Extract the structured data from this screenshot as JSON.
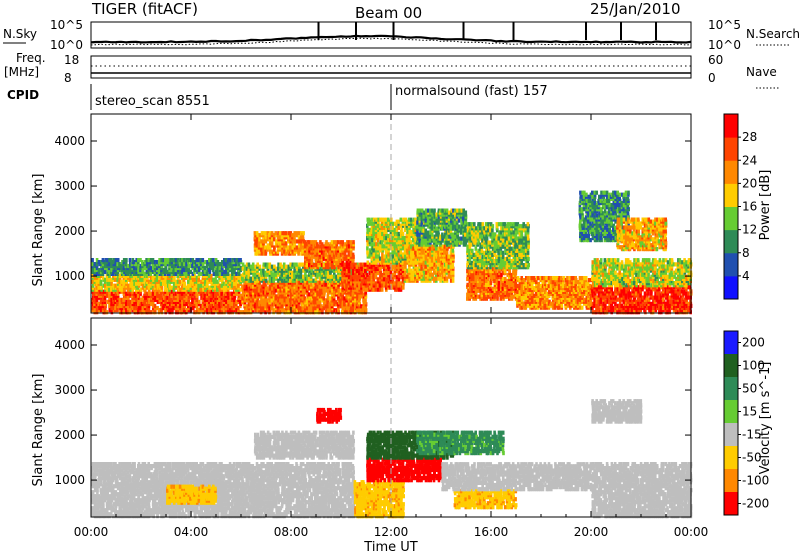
{
  "header": {
    "radar": "TIGER (fitACF)",
    "beam": "Beam 00",
    "date": "25/Jan/2010"
  },
  "sky_panel": {
    "left_label": "N.Sky",
    "right_label": "N.Search",
    "left_ticks": [
      "10^5",
      "10^0"
    ],
    "right_ticks": [
      "10^5",
      "10^0"
    ]
  },
  "freq_panel": {
    "left_label_line1": "Freq.",
    "left_label_line2": "[MHz]",
    "right_label": "Nave",
    "left_ticks": [
      "18",
      "8"
    ],
    "right_ticks": [
      "60",
      "0"
    ]
  },
  "cpid": {
    "label": "CPID",
    "segments": [
      {
        "name": "stereo_scan 8551",
        "start_hour": 0.0
      },
      {
        "name": "normalsound (fast) 157",
        "start_hour": 12.0
      }
    ]
  },
  "x_axis": {
    "label": "Time UT",
    "ticks": [
      "00:00",
      "04:00",
      "08:00",
      "12:00",
      "16:00",
      "20:00",
      "00:00"
    ],
    "tick_hours": [
      0,
      4,
      8,
      12,
      16,
      20,
      24
    ],
    "range_hours": [
      0,
      24
    ]
  },
  "chart_data": [
    {
      "type": "heatmap",
      "name": "power",
      "xlabel": "Time UT",
      "ylabel": "Slant Range [km]",
      "yticks": [
        "1000",
        "2000",
        "3000",
        "4000"
      ],
      "ytick_values": [
        1000,
        2000,
        3000,
        4000
      ],
      "ylim": [
        180,
        4600
      ],
      "xlim": [
        0,
        24
      ],
      "colorbar": {
        "label": "Power [dB]",
        "ticks": [
          "4",
          "8",
          "12",
          "16",
          "20",
          "24",
          "28"
        ],
        "levels": [
          0,
          4,
          8,
          12,
          16,
          20,
          24,
          28,
          32
        ],
        "colors": [
          "#1010ff",
          "#2050b0",
          "#2e8b57",
          "#66cc33",
          "#ffcc00",
          "#ff8800",
          "#ff4400",
          "#ff0000"
        ]
      },
      "regions": [
        {
          "t0": 0.0,
          "t1": 6.0,
          "r0": 200,
          "r1": 700,
          "v": 26
        },
        {
          "t0": 0.0,
          "t1": 6.0,
          "r0": 700,
          "r1": 1050,
          "v": 18
        },
        {
          "t0": 0.0,
          "t1": 6.0,
          "r0": 1050,
          "r1": 1400,
          "v": 10
        },
        {
          "t0": 6.0,
          "t1": 11.0,
          "r0": 200,
          "r1": 900,
          "v": 24
        },
        {
          "t0": 6.0,
          "t1": 11.0,
          "r0": 900,
          "r1": 1300,
          "v": 14
        },
        {
          "t0": 6.5,
          "t1": 8.5,
          "r0": 1500,
          "r1": 2000,
          "v": 22
        },
        {
          "t0": 8.5,
          "t1": 10.5,
          "r0": 1200,
          "r1": 1800,
          "v": 24
        },
        {
          "t0": 10.0,
          "t1": 12.5,
          "r0": 700,
          "r1": 1300,
          "v": 26
        },
        {
          "t0": 11.0,
          "t1": 13.0,
          "r0": 1300,
          "r1": 2300,
          "v": 16
        },
        {
          "t0": 12.5,
          "t1": 14.5,
          "r0": 900,
          "r1": 1700,
          "v": 20
        },
        {
          "t0": 13.0,
          "t1": 15.0,
          "r0": 1700,
          "r1": 2500,
          "v": 12
        },
        {
          "t0": 15.0,
          "t1": 17.0,
          "r0": 500,
          "r1": 1200,
          "v": 24
        },
        {
          "t0": 15.0,
          "t1": 17.5,
          "r0": 1200,
          "r1": 2200,
          "v": 14
        },
        {
          "t0": 17.0,
          "t1": 20.0,
          "r0": 300,
          "r1": 1000,
          "v": 22
        },
        {
          "t0": 19.5,
          "t1": 21.5,
          "r0": 1800,
          "r1": 2900,
          "v": 10
        },
        {
          "t0": 20.0,
          "t1": 24.0,
          "r0": 200,
          "r1": 800,
          "v": 28
        },
        {
          "t0": 20.0,
          "t1": 24.0,
          "r0": 800,
          "r1": 1400,
          "v": 16
        },
        {
          "t0": 21.0,
          "t1": 23.0,
          "r0": 1600,
          "r1": 2300,
          "v": 20
        }
      ]
    },
    {
      "type": "heatmap",
      "name": "velocity",
      "xlabel": "Time UT",
      "ylabel": "Slant Range [km]",
      "yticks": [
        "1000",
        "2000",
        "3000",
        "4000"
      ],
      "ytick_values": [
        1000,
        2000,
        3000,
        4000
      ],
      "ylim": [
        180,
        4600
      ],
      "xlim": [
        0,
        24
      ],
      "colorbar": {
        "label": "Velocity [m s^-1]",
        "ticks": [
          "200",
          "100",
          "50",
          "15",
          "-15",
          "-50",
          "-100",
          "-200"
        ],
        "colors": [
          "#1a1aff",
          "#206020",
          "#2e8b57",
          "#66cc33",
          "#bebebe",
          "#ffcc00",
          "#ff8800",
          "#ff0000"
        ]
      },
      "regions": [
        {
          "t0": 0.0,
          "t1": 10.5,
          "r0": 200,
          "r1": 1400,
          "v": 0
        },
        {
          "t0": 6.5,
          "t1": 10.5,
          "r0": 1500,
          "r1": 2100,
          "v": 0
        },
        {
          "t0": 3.0,
          "t1": 5.0,
          "r0": 500,
          "r1": 900,
          "v": -40
        },
        {
          "t0": 10.5,
          "t1": 12.5,
          "r0": 200,
          "r1": 1000,
          "v": -40
        },
        {
          "t0": 11.0,
          "t1": 14.0,
          "r0": 1000,
          "r1": 1500,
          "v": -200
        },
        {
          "t0": 11.0,
          "t1": 14.5,
          "r0": 1500,
          "r1": 2100,
          "v": 150
        },
        {
          "t0": 13.0,
          "t1": 16.5,
          "r0": 1600,
          "r1": 2100,
          "v": 60
        },
        {
          "t0": 14.5,
          "t1": 17.0,
          "r0": 400,
          "r1": 800,
          "v": -40
        },
        {
          "t0": 14.0,
          "t1": 20.0,
          "r0": 800,
          "r1": 1400,
          "v": 0
        },
        {
          "t0": 20.0,
          "t1": 24.0,
          "r0": 200,
          "r1": 1400,
          "v": 0
        },
        {
          "t0": 20.0,
          "t1": 22.0,
          "r0": 2300,
          "r1": 2800,
          "v": 0
        },
        {
          "t0": 9.0,
          "t1": 10.0,
          "r0": 2300,
          "r1": 2600,
          "v": -150
        }
      ]
    }
  ]
}
